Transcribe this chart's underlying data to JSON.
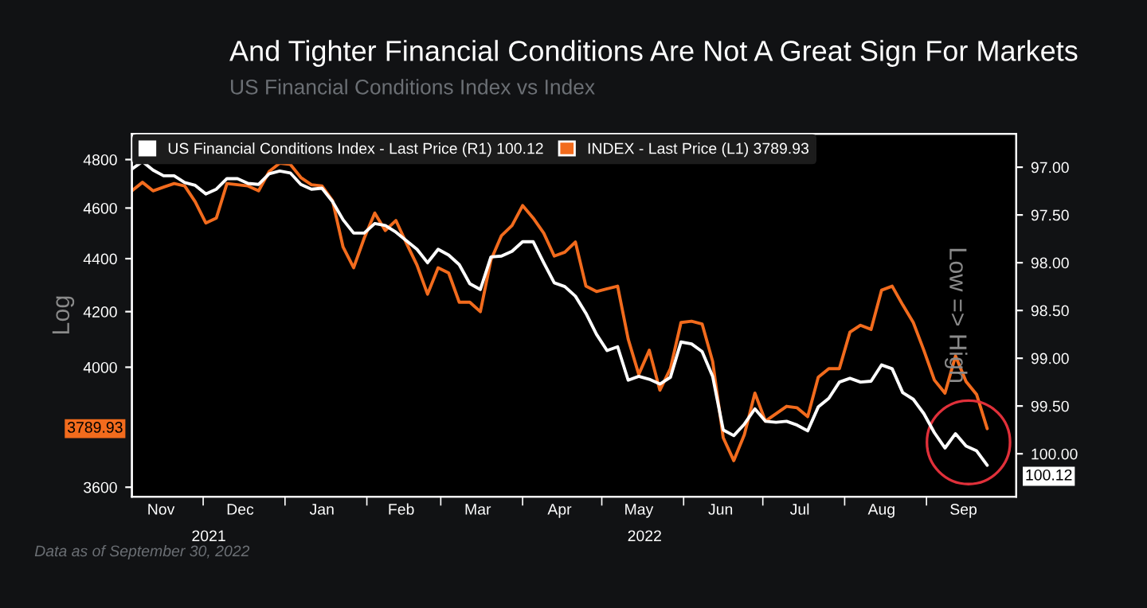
{
  "chart_data": {
    "type": "line",
    "title": "And Tighter Financial Conditions Are Not A Great Sign For Markets",
    "subtitle": "US Financial Conditions Index vs Index",
    "ylabel": "Log",
    "y2label": "Low => High",
    "x": [
      "2021-11-04",
      "2021-11-08",
      "2021-11-12",
      "2021-11-16",
      "2021-11-20",
      "2021-11-24",
      "2021-11-28",
      "2021-12-02",
      "2021-12-06",
      "2021-12-10",
      "2021-12-14",
      "2021-12-18",
      "2021-12-22",
      "2021-12-26",
      "2021-12-30",
      "2022-01-03",
      "2022-01-07",
      "2022-01-11",
      "2022-01-15",
      "2022-01-19",
      "2022-01-23",
      "2022-01-27",
      "2022-01-31",
      "2022-02-04",
      "2022-02-08",
      "2022-02-12",
      "2022-02-16",
      "2022-02-20",
      "2022-02-24",
      "2022-02-28",
      "2022-03-04",
      "2022-03-08",
      "2022-03-12",
      "2022-03-16",
      "2022-03-20",
      "2022-03-24",
      "2022-03-28",
      "2022-04-01",
      "2022-04-05",
      "2022-04-09",
      "2022-04-13",
      "2022-04-17",
      "2022-04-21",
      "2022-04-25",
      "2022-04-29",
      "2022-05-03",
      "2022-05-07",
      "2022-05-11",
      "2022-05-15",
      "2022-05-19",
      "2022-05-23",
      "2022-05-27",
      "2022-05-31",
      "2022-06-04",
      "2022-06-08",
      "2022-06-12",
      "2022-06-16",
      "2022-06-20",
      "2022-06-24",
      "2022-06-28",
      "2022-07-02",
      "2022-07-06",
      "2022-07-10",
      "2022-07-14",
      "2022-07-18",
      "2022-07-22",
      "2022-07-26",
      "2022-07-30",
      "2022-08-03",
      "2022-08-07",
      "2022-08-11",
      "2022-08-15",
      "2022-08-19",
      "2022-08-23",
      "2022-08-27",
      "2022-08-31",
      "2022-09-04",
      "2022-09-08",
      "2022-09-12",
      "2022-09-16",
      "2022-09-20",
      "2022-09-24"
    ],
    "series": [
      {
        "name": "US Financial Conditions Index - Last Price (R1) 100.12",
        "color": "#ffffff",
        "axis": "y2",
        "values": [
          97.02,
          96.94,
          97.03,
          97.09,
          97.09,
          97.16,
          97.19,
          97.28,
          97.23,
          97.12,
          97.12,
          97.17,
          97.18,
          97.07,
          97.04,
          97.06,
          97.18,
          97.23,
          97.22,
          97.36,
          97.55,
          97.69,
          97.69,
          97.59,
          97.61,
          97.68,
          97.77,
          97.86,
          98.0,
          97.86,
          97.92,
          98.02,
          98.22,
          98.28,
          97.94,
          97.93,
          97.88,
          97.78,
          97.78,
          98.0,
          98.21,
          98.25,
          98.35,
          98.53,
          98.75,
          98.92,
          98.88,
          99.23,
          99.19,
          99.22,
          99.27,
          99.2,
          98.83,
          98.85,
          98.93,
          99.19,
          99.75,
          99.81,
          99.69,
          99.53,
          99.66,
          99.67,
          99.66,
          99.7,
          99.76,
          99.51,
          99.42,
          99.25,
          99.21,
          99.25,
          99.24,
          99.07,
          99.11,
          99.36,
          99.43,
          99.58,
          99.78,
          99.94,
          99.79,
          99.92,
          99.97,
          100.12
        ]
      },
      {
        "name": "INDEX - Last Price (L1) 3789.93",
        "color": "#f26b1d",
        "values": [
          4670,
          4705,
          4670,
          4685,
          4700,
          4690,
          4625,
          4540,
          4560,
          4700,
          4695,
          4690,
          4670,
          4750,
          4785,
          4780,
          4725,
          4695,
          4690,
          4630,
          4445,
          4365,
          4480,
          4580,
          4510,
          4550,
          4460,
          4375,
          4265,
          4365,
          4345,
          4235,
          4235,
          4200,
          4395,
          4490,
          4530,
          4610,
          4560,
          4500,
          4410,
          4425,
          4465,
          4295,
          4275,
          4285,
          4295,
          4100,
          3975,
          4060,
          3920,
          3995,
          4160,
          4165,
          4155,
          4020,
          3760,
          3685,
          3770,
          3910,
          3815,
          3840,
          3865,
          3860,
          3830,
          3965,
          3995,
          3995,
          4125,
          4150,
          4135,
          4280,
          4295,
          4225,
          4160,
          4060,
          3955,
          3910,
          4040,
          3950,
          3905,
          3789.93
        ]
      }
    ],
    "xlim": [
      "2021-11-04",
      "2022-10-05"
    ],
    "xticks": [
      {
        "value": "2021-11-15",
        "label": "Nov"
      },
      {
        "value": "2021-12-15",
        "label": "Dec"
      },
      {
        "value": "2022-01-15",
        "label": "Jan"
      },
      {
        "value": "2022-02-14",
        "label": "Feb"
      },
      {
        "value": "2022-03-15",
        "label": "Mar"
      },
      {
        "value": "2022-04-15",
        "label": "Apr"
      },
      {
        "value": "2022-05-15",
        "label": "May"
      },
      {
        "value": "2022-06-15",
        "label": "Jun"
      },
      {
        "value": "2022-07-15",
        "label": "Jul"
      },
      {
        "value": "2022-08-15",
        "label": "Aug"
      },
      {
        "value": "2022-09-15",
        "label": "Sep"
      },
      {
        "value": "2021-12-01",
        "label": null
      },
      {
        "value": "2022-01-01",
        "label": null
      },
      {
        "value": "2022-02-01",
        "label": null
      },
      {
        "value": "2022-03-01",
        "label": null
      },
      {
        "value": "2022-04-01",
        "label": null
      },
      {
        "value": "2022-05-01",
        "label": null
      },
      {
        "value": "2022-06-01",
        "label": null
      },
      {
        "value": "2022-07-01",
        "label": null
      },
      {
        "value": "2022-08-01",
        "label": null
      },
      {
        "value": "2022-09-01",
        "label": null
      }
    ],
    "ylim": [
      3570,
      4910
    ],
    "log": "y",
    "yticks": [
      3600,
      4000,
      4200,
      4400,
      4600,
      4800
    ],
    "y2lim": [
      100.45,
      96.65
    ],
    "y2ticks": [
      {
        "value": 97,
        "label": "97.00"
      },
      {
        "value": 97.5,
        "label": "97.50"
      },
      {
        "value": 98,
        "label": "98.00"
      },
      {
        "value": 98.5,
        "label": "98.50"
      },
      {
        "value": 99,
        "label": "99.00"
      },
      {
        "value": 99.5,
        "label": "99.50"
      },
      {
        "value": 100,
        "label": "100.00"
      }
    ],
    "legend": "top left",
    "grid": false,
    "annotations": [
      "2021",
      "2022",
      "Data as of September 30, 2022",
      "3789.93",
      "100.12"
    ]
  }
}
